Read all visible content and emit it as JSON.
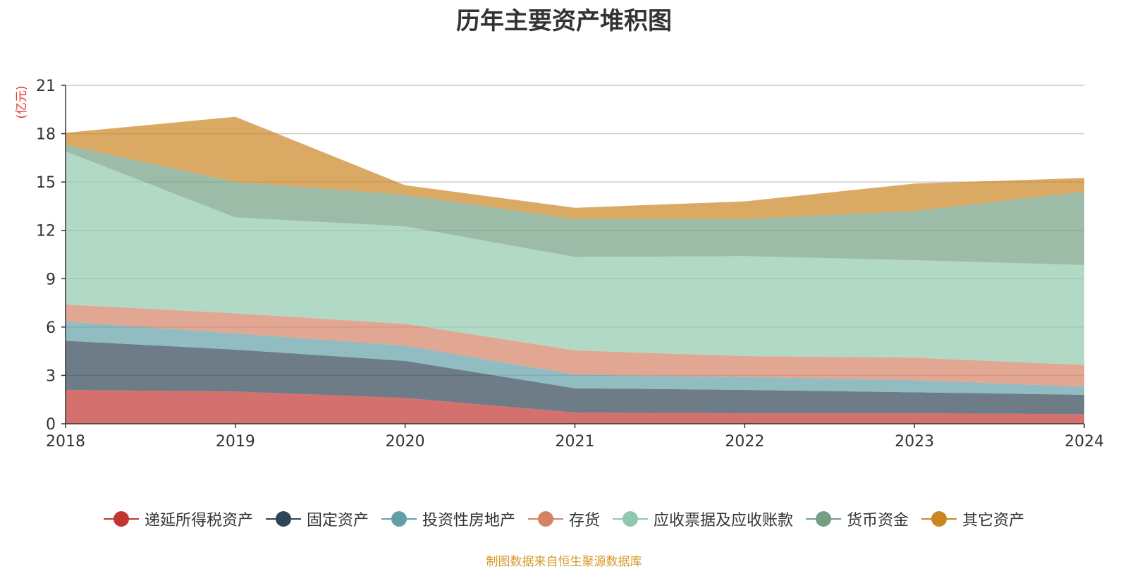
{
  "chart_data": {
    "type": "area",
    "stacked": true,
    "title": "历年主要资产堆积图",
    "ylabel": "(亿元)",
    "xlabel": "",
    "x": [
      "2018",
      "2019",
      "2020",
      "2021",
      "2022",
      "2023",
      "2024"
    ],
    "ylim": [
      0,
      21
    ],
    "yticks": [
      "0",
      "3",
      "6",
      "9",
      "12",
      "15",
      "18",
      "21"
    ],
    "grid": true,
    "legend_position": "bottom",
    "series": [
      {
        "name": "递延所得税资产",
        "color": "#c23531",
        "values": [
          2.1,
          2.0,
          1.6,
          0.7,
          0.65,
          0.65,
          0.6
        ]
      },
      {
        "name": "固定资产",
        "color": "#2f4554",
        "values": [
          3.05,
          2.6,
          2.3,
          1.5,
          1.45,
          1.3,
          1.2
        ]
      },
      {
        "name": "投资性房地产",
        "color": "#61a0a8",
        "values": [
          1.2,
          1.0,
          0.95,
          0.85,
          0.8,
          0.75,
          0.5
        ]
      },
      {
        "name": "存货",
        "color": "#d48265",
        "values": [
          1.05,
          1.25,
          1.35,
          1.5,
          1.3,
          1.4,
          1.35
        ]
      },
      {
        "name": "应收票据及应收账款",
        "color": "#91c7ae",
        "values": [
          9.5,
          5.95,
          6.05,
          5.8,
          6.2,
          6.05,
          6.2
        ]
      },
      {
        "name": "货币资金",
        "color": "#749f83",
        "values": [
          0.4,
          2.2,
          1.95,
          2.35,
          2.3,
          3.05,
          4.55
        ]
      },
      {
        "name": "其它资产",
        "color": "#ca8622",
        "values": [
          0.75,
          4.05,
          0.6,
          0.7,
          1.1,
          1.7,
          0.85
        ]
      }
    ]
  },
  "source_note": "制图数据来自恒生聚源数据库"
}
